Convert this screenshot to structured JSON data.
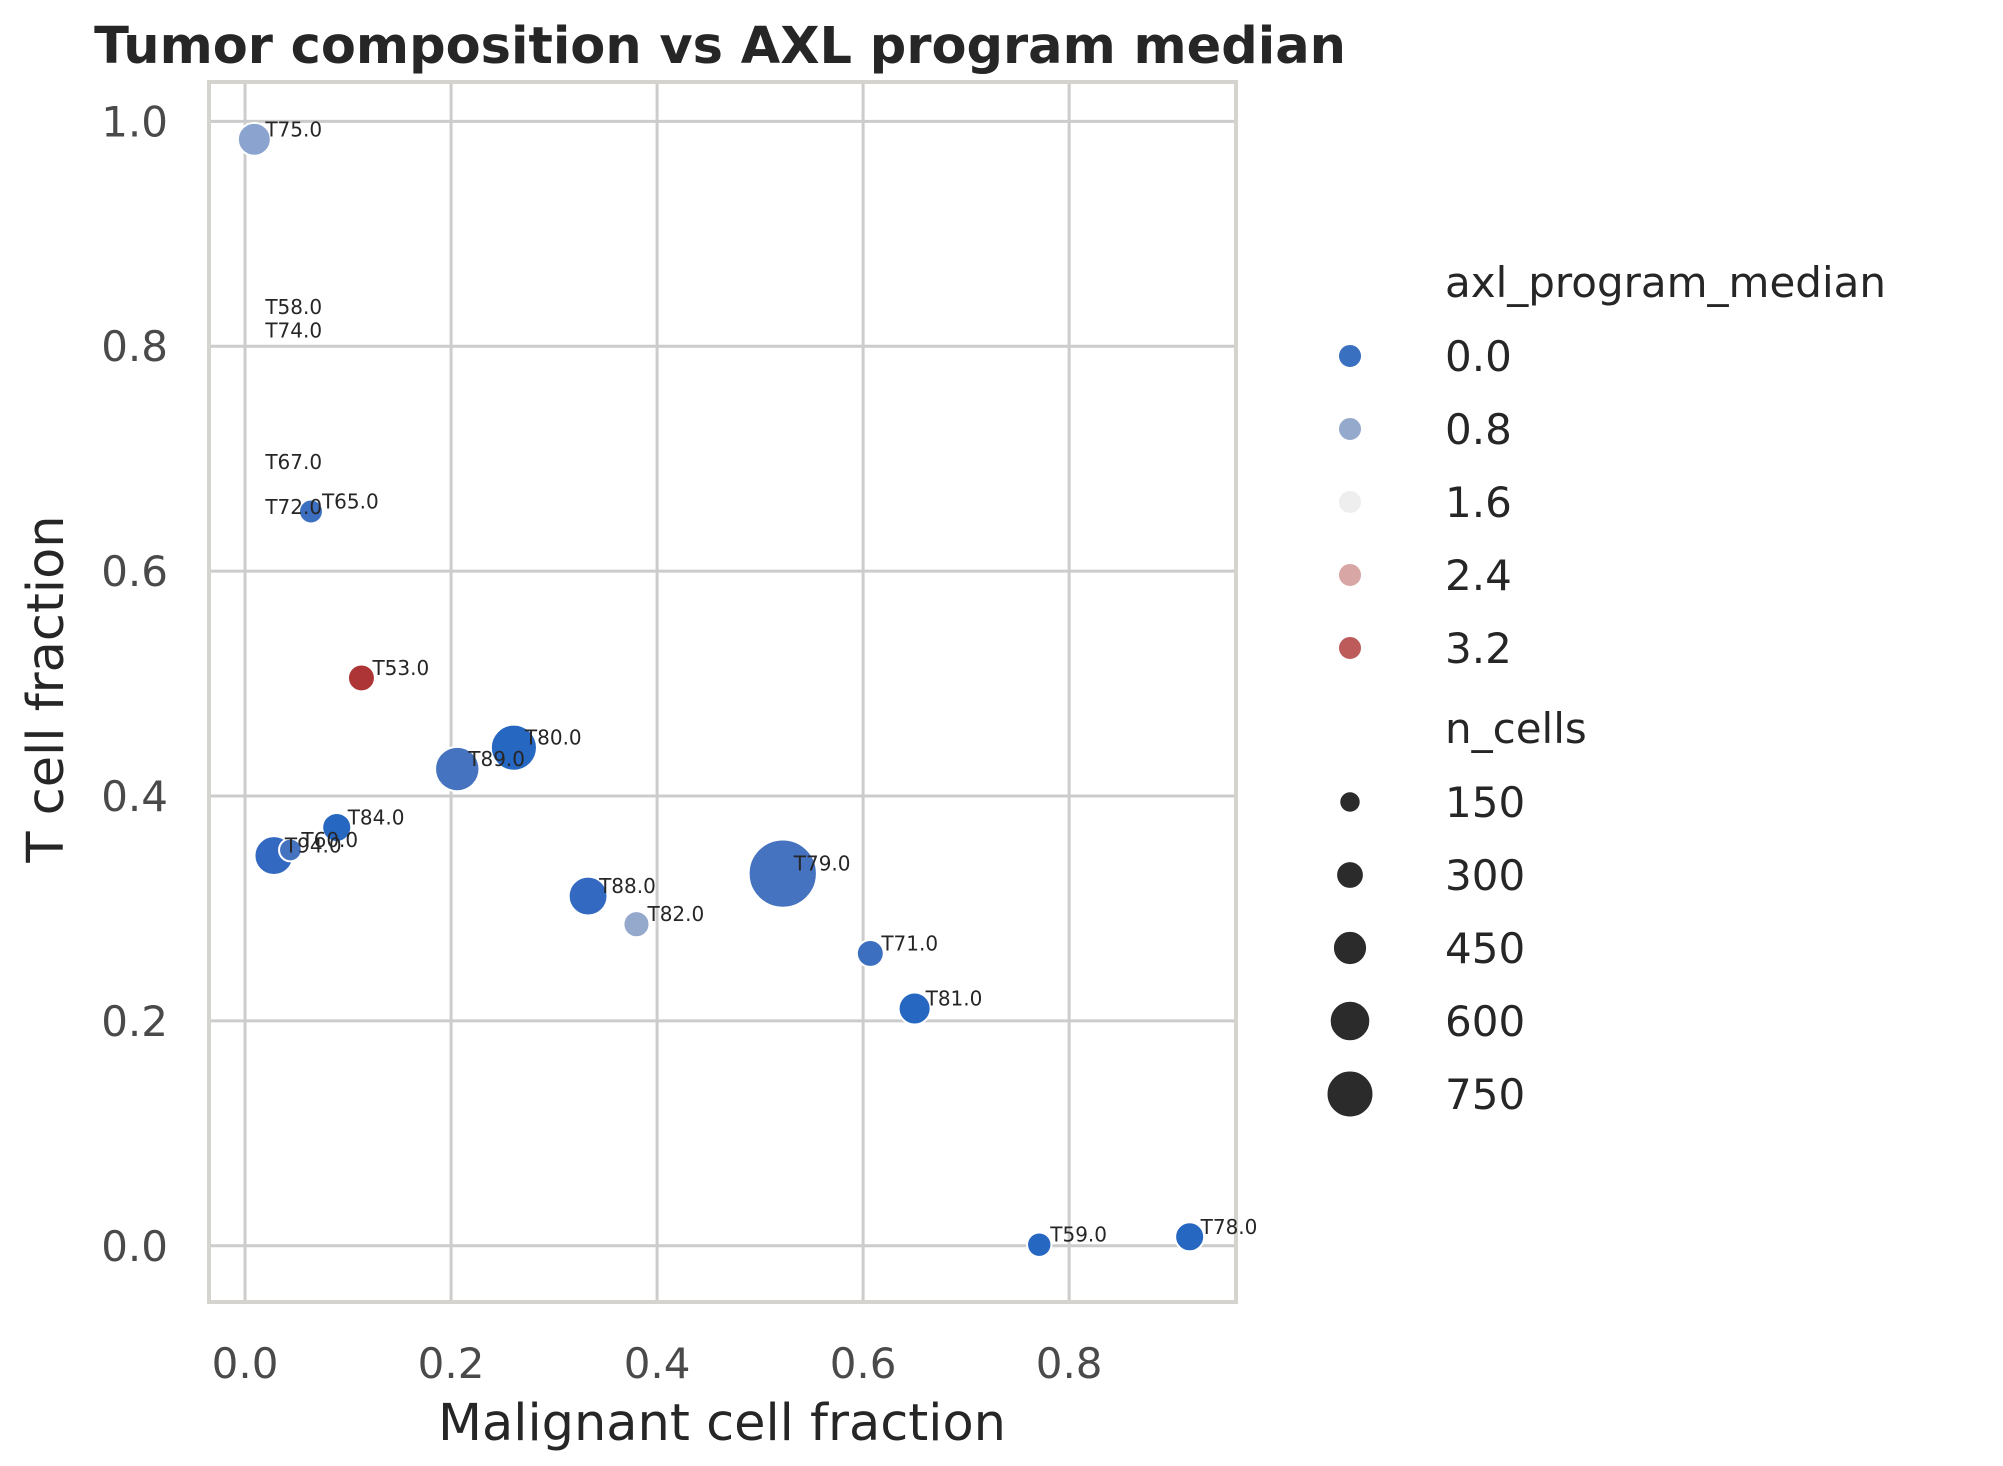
{
  "chart_data": {
    "type": "scatter",
    "title": "Tumor composition vs AXL program median",
    "xlabel": "Malignant cell fraction",
    "ylabel": "T cell fraction",
    "xlim": [
      -0.035,
      0.962
    ],
    "ylim": [
      -0.05,
      1.035
    ],
    "xticks": [
      0.0,
      0.2,
      0.4,
      0.6,
      0.8
    ],
    "xtick_labels": [
      "0.0",
      "0.2",
      "0.4",
      "0.6",
      "0.8"
    ],
    "yticks": [
      0.0,
      0.2,
      0.4,
      0.6,
      0.8,
      1.0
    ],
    "ytick_labels": [
      "0.0",
      "0.2",
      "0.4",
      "0.6",
      "0.8",
      "1.0"
    ],
    "grid": true,
    "legend_position": "right, outside plot",
    "color_legend": {
      "title": "axl_program_median",
      "entries": [
        {
          "label": "0.0",
          "color": "#3a70c0"
        },
        {
          "label": "0.8",
          "color": "#95a9cc"
        },
        {
          "label": "1.6",
          "color": "#eeeeee"
        },
        {
          "label": "2.4",
          "color": "#d9a6a6"
        },
        {
          "label": "3.2",
          "color": "#bd5a5a"
        }
      ]
    },
    "size_legend": {
      "title": "n_cells",
      "color": "#2b2b2b",
      "entries": [
        {
          "label": "150",
          "value": 150
        },
        {
          "label": "300",
          "value": 300
        },
        {
          "label": "450",
          "value": 450
        },
        {
          "label": "600",
          "value": 600
        },
        {
          "label": "750",
          "value": 750
        }
      ]
    },
    "points": [
      {
        "label": "T75.0",
        "x": 0.009,
        "y": 0.984,
        "n_cells": 420,
        "color": "#8aa4cf"
      },
      {
        "label": "T58.0",
        "x": 0.009,
        "y": 0.826,
        "n_cells": 0,
        "color": "#ffffff"
      },
      {
        "label": "T74.0",
        "x": 0.009,
        "y": 0.805,
        "n_cells": 0,
        "color": "#ffffff"
      },
      {
        "label": "T67.0",
        "x": 0.009,
        "y": 0.688,
        "n_cells": 0,
        "color": "#ffffff"
      },
      {
        "label": "T72.0",
        "x": 0.009,
        "y": 0.648,
        "n_cells": 0,
        "color": "#ffffff"
      },
      {
        "label": "T65.0",
        "x": 0.064,
        "y": 0.653,
        "n_cells": 210,
        "color": "#3d6fc0"
      },
      {
        "label": "T53.0",
        "x": 0.113,
        "y": 0.505,
        "n_cells": 280,
        "color": "#ad3535"
      },
      {
        "label": "T80.0",
        "x": 0.261,
        "y": 0.443,
        "n_cells": 730,
        "color": "#2667c2"
      },
      {
        "label": "T89.0",
        "x": 0.206,
        "y": 0.424,
        "n_cells": 690,
        "color": "#4573c0"
      },
      {
        "label": "T84.0",
        "x": 0.089,
        "y": 0.372,
        "n_cells": 330,
        "color": "#2667c2"
      },
      {
        "label": "T60.0",
        "x": 0.044,
        "y": 0.352,
        "n_cells": 180,
        "color": "#4573c0"
      },
      {
        "label": "T94.0",
        "x": 0.028,
        "y": 0.347,
        "n_cells": 560,
        "color": "#3369c0"
      },
      {
        "label": "T88.0",
        "x": 0.333,
        "y": 0.311,
        "n_cells": 560,
        "color": "#3369c0"
      },
      {
        "label": "T82.0",
        "x": 0.38,
        "y": 0.286,
        "n_cells": 260,
        "color": "#95a9cc"
      },
      {
        "label": "T79.0",
        "x": 0.522,
        "y": 0.331,
        "n_cells": 1250,
        "color": "#4573c0"
      },
      {
        "label": "T71.0",
        "x": 0.607,
        "y": 0.26,
        "n_cells": 280,
        "color": "#3d6fc0"
      },
      {
        "label": "T81.0",
        "x": 0.65,
        "y": 0.211,
        "n_cells": 400,
        "color": "#2667c2"
      },
      {
        "label": "T59.0",
        "x": 0.771,
        "y": 0.001,
        "n_cells": 220,
        "color": "#2667c2"
      },
      {
        "label": "T78.0",
        "x": 0.917,
        "y": 0.008,
        "n_cells": 330,
        "color": "#2667c2"
      }
    ]
  }
}
